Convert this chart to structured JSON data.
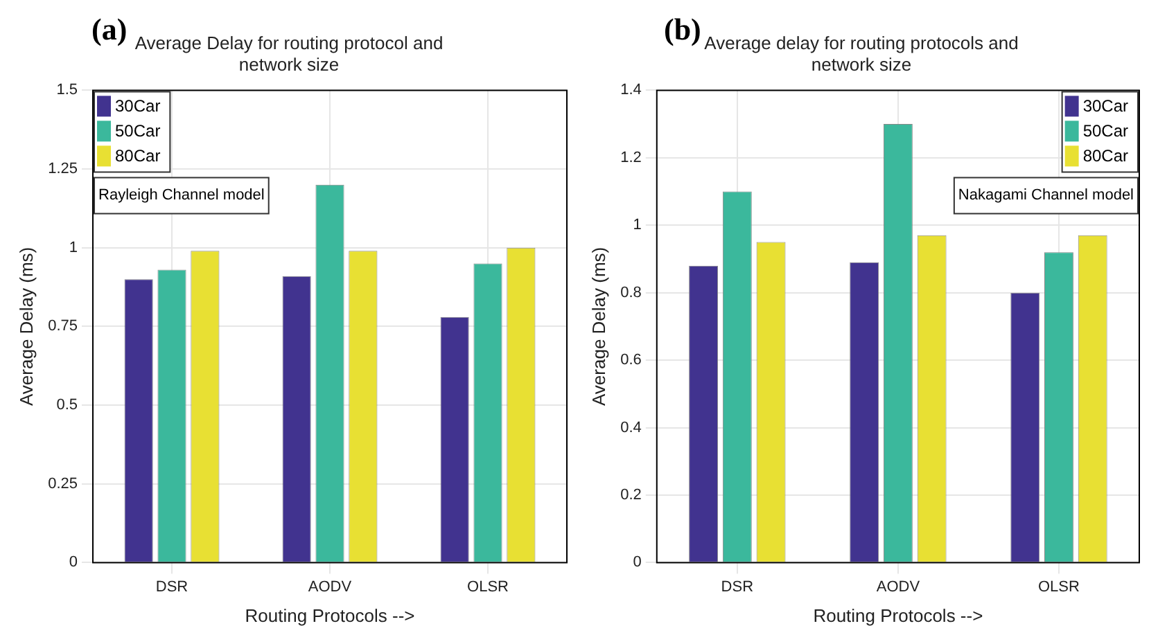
{
  "chart_data": [
    {
      "type": "bar",
      "title": "Average Delay for routing protocol and network size",
      "xlabel": "Routing Protocols -->",
      "ylabel": "Average Delay (ms)",
      "categories": [
        "DSR",
        "AODV",
        "OLSR"
      ],
      "series": [
        {
          "name": "30Car",
          "color": "#41338f",
          "values": [
            0.9,
            0.91,
            0.78
          ]
        },
        {
          "name": "50Car",
          "color": "#3bb89c",
          "values": [
            0.93,
            1.2,
            0.95
          ]
        },
        {
          "name": "80Car",
          "color": "#e8e033",
          "values": [
            0.99,
            0.99,
            1.0
          ]
        }
      ],
      "ylim": [
        0,
        1.5
      ],
      "yticks": [
        0,
        0.25,
        0.5,
        0.75,
        1,
        1.25,
        1.5
      ],
      "grid": true,
      "legend": "top left",
      "annotations": [
        "(a)",
        "Rayleigh Channel model"
      ]
    },
    {
      "type": "bar",
      "title": "Average delay for routing protocols and network size",
      "xlabel": "Routing Protocols -->",
      "ylabel": "Average Delay (ms)",
      "categories": [
        "DSR",
        "AODV",
        "OLSR"
      ],
      "series": [
        {
          "name": "30Car",
          "color": "#41338f",
          "values": [
            0.88,
            0.89,
            0.8
          ]
        },
        {
          "name": "50Car",
          "color": "#3bb89c",
          "values": [
            1.1,
            1.3,
            0.92
          ]
        },
        {
          "name": "80Car",
          "color": "#e8e033",
          "values": [
            0.95,
            0.97,
            0.97
          ]
        }
      ],
      "ylim": [
        0,
        1.4
      ],
      "yticks": [
        0,
        0.2,
        0.4,
        0.6,
        0.8,
        1,
        1.2,
        1.4
      ],
      "grid": true,
      "legend": "top right",
      "annotations": [
        "(b)",
        "Nakagami Channel model"
      ]
    }
  ]
}
